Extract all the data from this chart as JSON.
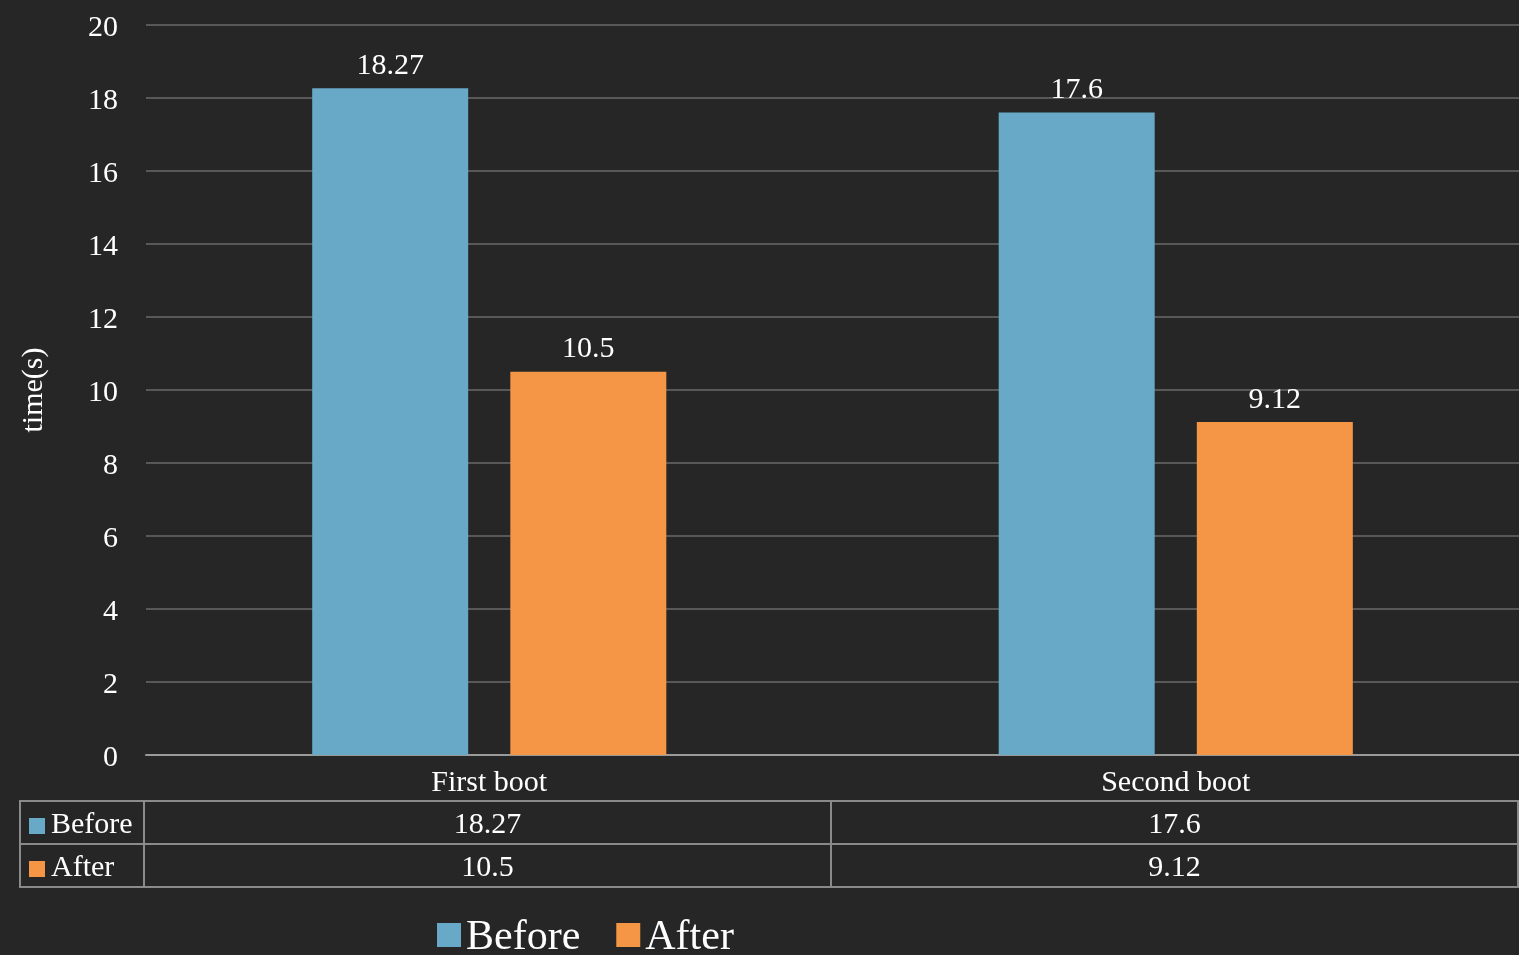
{
  "chart_data": {
    "type": "bar",
    "ylabel": "time(s)",
    "categories": [
      "First boot",
      "Second boot"
    ],
    "series": [
      {
        "name": "Before",
        "color": "#67a9c6",
        "values": [
          18.27,
          17.6
        ],
        "value_labels": [
          "18.27",
          "17.6"
        ]
      },
      {
        "name": "After",
        "color": "#f59646",
        "values": [
          10.5,
          9.12
        ],
        "value_labels": [
          "10.5",
          "9.12"
        ]
      }
    ],
    "ylim": [
      0,
      20
    ],
    "yticks": [
      0,
      2,
      4,
      6,
      8,
      10,
      12,
      14,
      16,
      18,
      20
    ],
    "grid": "y",
    "legend": "bottom",
    "annotations": [
      "18.27",
      "17.6",
      "10.5",
      "9.12"
    ]
  }
}
